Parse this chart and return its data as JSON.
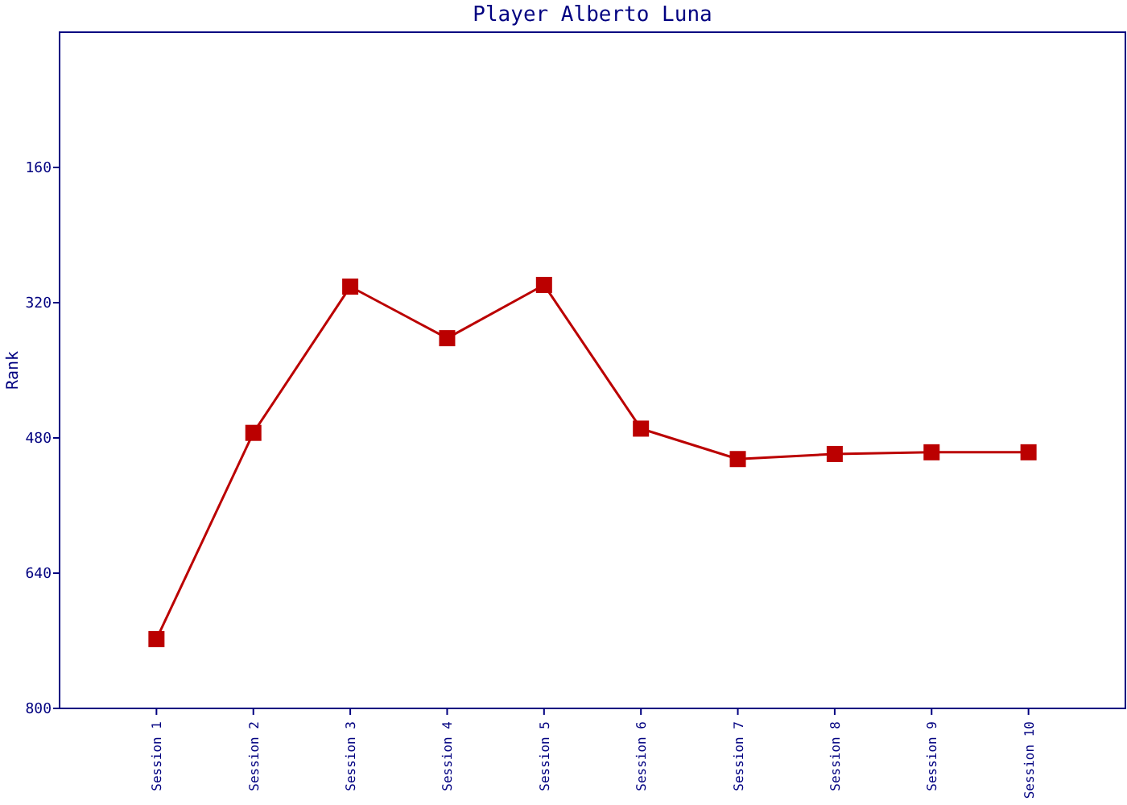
{
  "chart_data": {
    "type": "line",
    "title": "Player Alberto Luna",
    "ylabel": "Rank",
    "categories": [
      "Session 1",
      "Session 2",
      "Session 3",
      "Session 4",
      "Session 5",
      "Session 6",
      "Session 7",
      "Session 8",
      "Session 9",
      "Session 10"
    ],
    "series": [
      {
        "color": "#bb0000",
        "values": [
          718,
          474,
          301,
          362,
          299,
          469,
          505,
          499,
          497,
          497
        ]
      }
    ],
    "ylim": [
      800,
      0
    ],
    "yticks": [
      160,
      320,
      480,
      640,
      800
    ],
    "marker": "square",
    "line_style": "solid"
  }
}
